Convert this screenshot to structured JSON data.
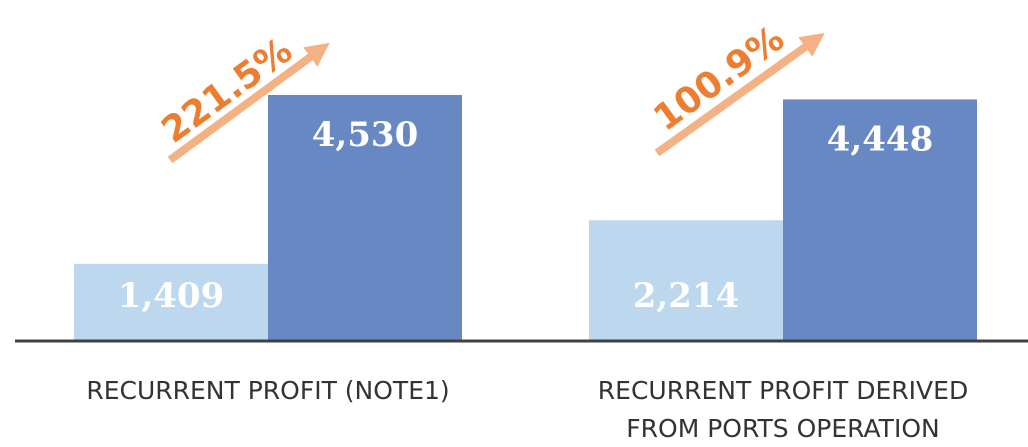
{
  "chart_data": {
    "type": "bar",
    "categories": [
      "RECURRENT PROFIT (NOTE1)",
      "RECURRENT PROFIT DERIVED FROM PORTS OPERATION"
    ],
    "series": [
      {
        "color": "#bdd7ee",
        "values": [
          1409,
          2214
        ],
        "value_labels": [
          "1,409",
          "2,214"
        ]
      },
      {
        "color": "#6788c2",
        "values": [
          4530,
          4448
        ],
        "value_labels": [
          "4,530",
          "4,448"
        ]
      }
    ],
    "annotations": [
      "221.5%",
      "100.9%"
    ]
  }
}
